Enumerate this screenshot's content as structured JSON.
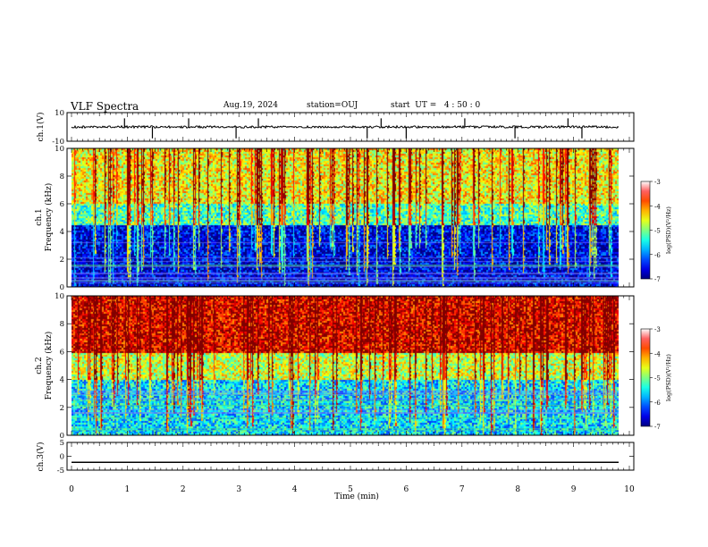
{
  "header": {
    "title": "VLF Spectra",
    "date": "Aug.19, 2024",
    "station": "station=OUJ",
    "start": "start  UT =   4 : 50 : 0"
  },
  "chart_data": [
    {
      "type": "line",
      "panel": "ch1-waveform",
      "ylabel": "ch.1(V)",
      "ylim": [
        -10,
        10
      ],
      "yticks": [
        "10",
        "-10"
      ],
      "xlim": [
        0,
        10
      ],
      "baseline": 0,
      "series": [
        {
          "values": [
            0.2,
            -0.3,
            0.1,
            0.4,
            -0.2,
            0.0,
            -0.4,
            0.3,
            0.1,
            -0.1
          ]
        }
      ],
      "spikes_min": [
        0.95,
        1.45,
        2.1,
        2.95,
        3.35,
        5.3,
        5.55,
        6.0,
        7.05,
        7.95,
        8.9,
        9.15
      ],
      "color": "#000000"
    },
    {
      "type": "heatmap",
      "panel": "ch1-spectrogram",
      "ylabel_ch": "ch.1",
      "ylabel": "Frequency  (kHz)",
      "ylim": [
        0,
        10
      ],
      "yticks": [
        "0",
        "2",
        "4",
        "6",
        "8",
        "10"
      ],
      "colorbar": {
        "label": "log(PSD)(V²/Hz)",
        "range": [
          -7,
          -3
        ],
        "ticks": [
          "-3",
          "-4",
          "-5",
          "-6",
          "-7"
        ]
      },
      "bands_khz": [
        {
          "from": 0,
          "to": 4.5,
          "level": -6.6
        },
        {
          "from": 4.5,
          "to": 6,
          "level": -5.2
        },
        {
          "from": 6,
          "to": 10,
          "level": -4.5
        }
      ]
    },
    {
      "type": "heatmap",
      "panel": "ch2-spectrogram",
      "ylabel_ch": "ch.2",
      "ylabel": "Frequency  (kHz)",
      "ylim": [
        0,
        10
      ],
      "yticks": [
        "0",
        "2",
        "4",
        "6",
        "8",
        "10"
      ],
      "colorbar": {
        "label": "log(PSD)(V²/Hz)",
        "range": [
          -7,
          -3
        ],
        "ticks": [
          "-3",
          "-4",
          "-5",
          "-6",
          "-7"
        ]
      },
      "bands_khz": [
        {
          "from": 0,
          "to": 4,
          "level": -5.6
        },
        {
          "from": 4,
          "to": 6,
          "level": -4.7
        },
        {
          "from": 6,
          "to": 10,
          "level": -3.4
        }
      ]
    },
    {
      "type": "line",
      "panel": "ch3-waveform",
      "ylabel": "ch.3(V)",
      "ylim": [
        -5,
        5
      ],
      "yticks": [
        "5",
        "0",
        "-5"
      ],
      "xlim": [
        0,
        10
      ],
      "series": [
        {
          "values": [
            -2.2,
            -2.2,
            -2.2,
            -2.2,
            -2.2,
            -2.2,
            -2.2,
            -2.2,
            -2.2,
            -2.2
          ]
        }
      ],
      "color": "#000000"
    }
  ],
  "xaxis": {
    "label": "Time  (min)",
    "range": [
      0,
      10
    ],
    "ticks": [
      "0",
      "1",
      "2",
      "3",
      "4",
      "5",
      "6",
      "7",
      "8",
      "9",
      "10"
    ]
  }
}
